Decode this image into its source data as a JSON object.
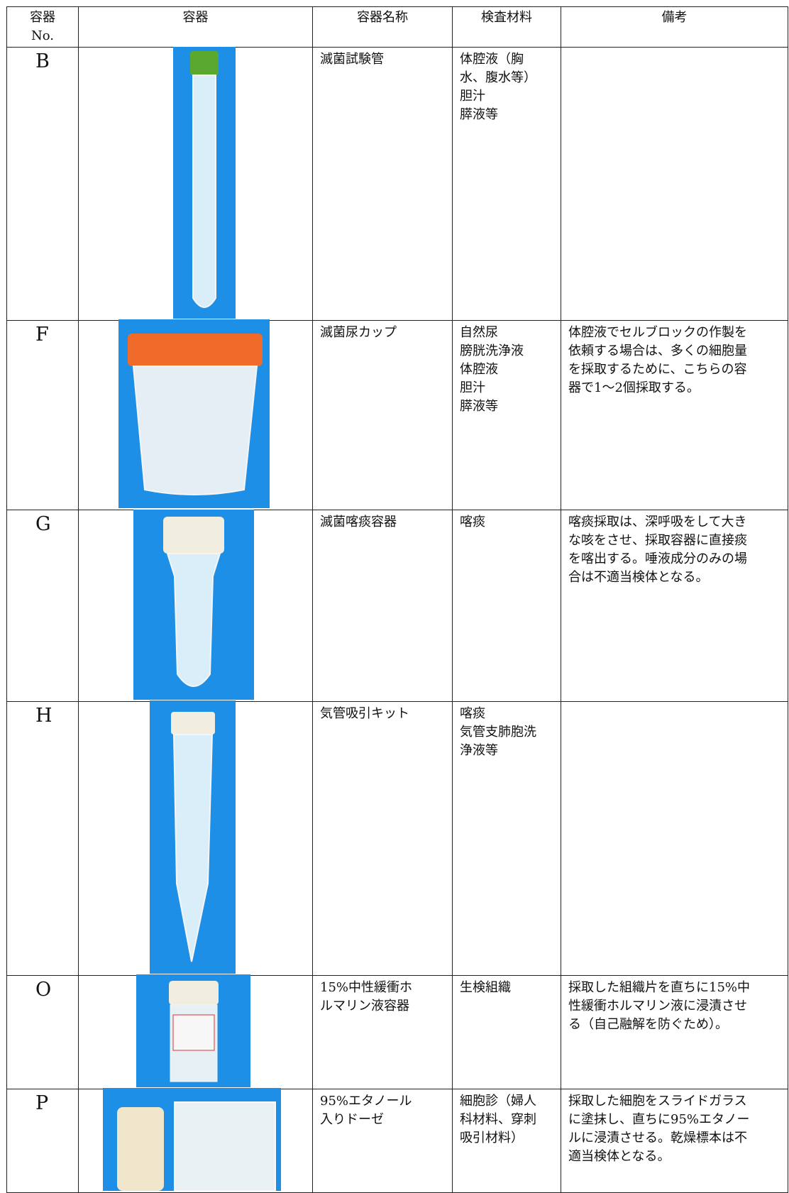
{
  "table": {
    "headers": [
      [
        "容器",
        "No."
      ],
      [
        "容器"
      ],
      [
        "容器名称"
      ],
      [
        "検査材料"
      ],
      [
        "備考"
      ]
    ],
    "rows": [
      {
        "id": "B",
        "name": [
          "滅菌試験管"
        ],
        "materials": [
          "体腔液（胸",
          "水、腹水等）",
          "胆汁",
          "膵液等"
        ],
        "notes": []
      },
      {
        "id": "F",
        "name": [
          "滅菌尿カップ"
        ],
        "materials": [
          "自然尿",
          "膀胱洗浄液",
          "体腔液",
          "胆汁",
          "膵液等"
        ],
        "notes": [
          "体腔液でセルブロックの作製を",
          "依頼する場合は、多くの細胞量",
          "を採取するために、こちらの容",
          "器で1〜2個採取する。"
        ]
      },
      {
        "id": "G",
        "name": [
          "滅菌喀痰容器"
        ],
        "materials": [
          "喀痰"
        ],
        "notes": [
          "喀痰採取は、深呼吸をして大き",
          "な咳をさせ、採取容器に直接痰",
          "を喀出する。唾液成分のみの場",
          "合は不適当検体となる。"
        ]
      },
      {
        "id": "H",
        "name": [
          "気管吸引キット"
        ],
        "materials": [
          "喀痰",
          "気管支肺胞洗",
          "浄液等"
        ],
        "notes": []
      },
      {
        "id": "O",
        "name": [
          "15%中性緩衝ホ",
          "ルマリン液容器"
        ],
        "materials": [
          "生検組織"
        ],
        "notes": [
          "採取した組織片を直ちに15%中",
          "性緩衝ホルマリン液に浸漬させ",
          "る（自己融解を防ぐため）。"
        ]
      },
      {
        "id": "P",
        "name": [
          "95%エタノール",
          "入りドーゼ"
        ],
        "materials": [
          "細胞診（婦人",
          "科材料、穿刺",
          "吸引材料）"
        ],
        "notes": [
          "採取した細胞をスライドガラス",
          "に塗抹し、直ちに95%エタノー",
          "ルに浸漬させる。乾燥標本は不",
          "適当検体となる。"
        ]
      }
    ]
  }
}
